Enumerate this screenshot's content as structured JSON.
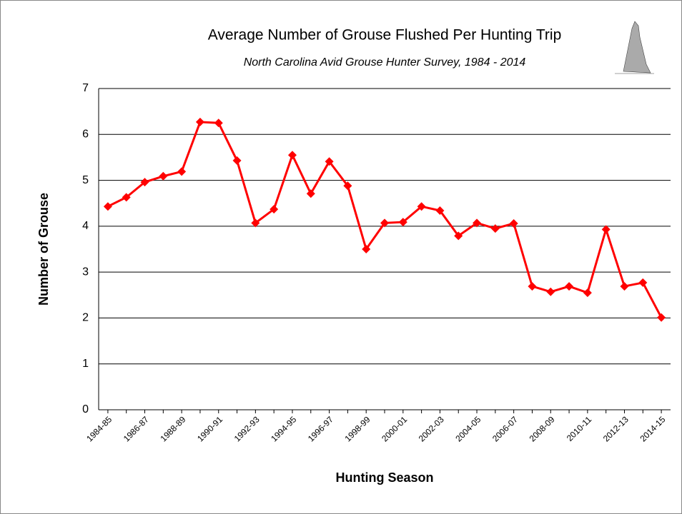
{
  "chart_data": {
    "type": "line",
    "title": "Average Number of Grouse Flushed Per Hunting Trip",
    "subtitle": "North Carolina Avid Grouse Hunter Survey, 1984 - 2014",
    "x_label": "Hunting Season",
    "y_label": "Number of  Grouse",
    "categories": [
      "1984-85",
      null,
      "1986-87",
      null,
      "1988-89",
      null,
      "1990-91",
      null,
      "1992-93",
      null,
      "1994-95",
      null,
      "1996-97",
      null,
      "1998-99",
      null,
      "2000-01",
      null,
      "2002-03",
      null,
      "2004-05",
      null,
      "2006-07",
      null,
      "2008-09",
      null,
      "2010-11",
      null,
      "2012-13",
      null,
      "2014-15"
    ],
    "values": [
      4.43,
      4.63,
      4.96,
      5.09,
      5.19,
      6.27,
      6.25,
      5.43,
      4.07,
      4.37,
      5.55,
      4.71,
      5.41,
      4.88,
      3.5,
      4.07,
      4.09,
      4.43,
      4.34,
      3.79,
      4.07,
      3.95,
      4.06,
      2.69,
      2.57,
      2.69,
      2.55,
      3.93,
      2.69,
      2.77,
      2.01
    ],
    "color": "#ff0000",
    "ylim": [
      0,
      7
    ],
    "yticks": [
      0,
      1,
      2,
      3,
      4,
      5,
      6,
      7
    ],
    "grid": true
  }
}
